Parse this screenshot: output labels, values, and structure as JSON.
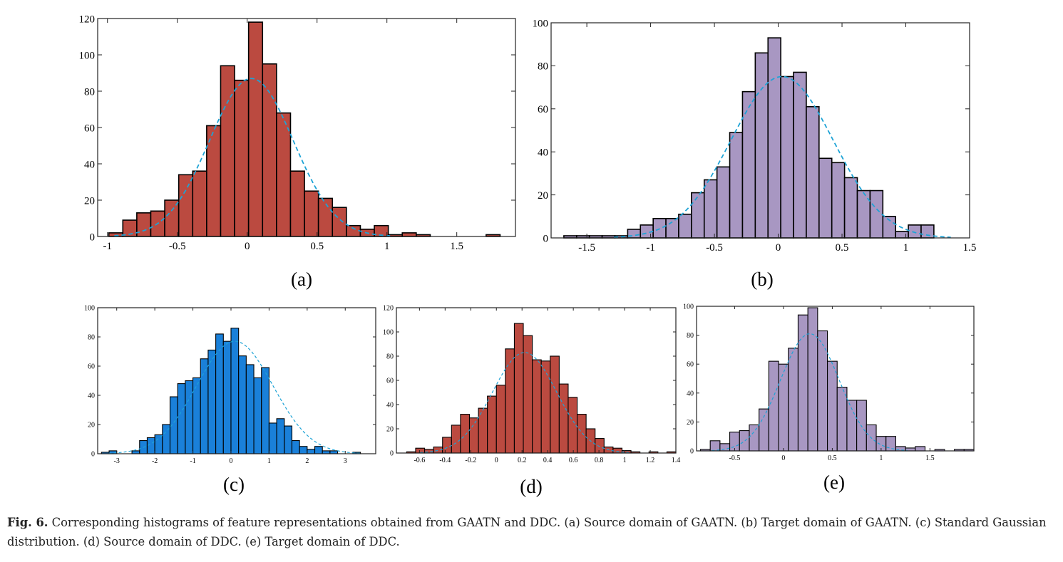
{
  "chart_data": [
    {
      "type": "histogram",
      "label": "(a)",
      "color": "#bb4a40",
      "bins": [
        -0.99,
        -0.89,
        -0.79,
        -0.69,
        -0.59,
        -0.49,
        -0.39,
        -0.29,
        -0.19,
        -0.09,
        0.01,
        0.11,
        0.21,
        0.31,
        0.41,
        0.51,
        0.61,
        0.71,
        0.81,
        0.91,
        1.01,
        1.11,
        1.21,
        1.31,
        1.41,
        1.51,
        1.61,
        1.71,
        1.81
      ],
      "values": [
        2,
        9,
        13,
        14,
        20,
        34,
        36,
        61,
        94,
        86,
        118,
        95,
        68,
        36,
        25,
        21,
        16,
        6,
        4,
        6,
        1,
        2,
        1,
        0,
        0,
        0,
        0,
        1
      ],
      "fit": {
        "style": "dashed",
        "color": "#1ea3d6",
        "mean": 0.03,
        "sd": 0.3,
        "peak": 87
      },
      "xlim": [
        -1.07,
        1.92
      ],
      "ylim": [
        0,
        120
      ],
      "xticks": [
        -1,
        -0.5,
        0,
        0.5,
        1,
        1.5
      ],
      "yticks": [
        0,
        20,
        40,
        60,
        80,
        100,
        120
      ]
    },
    {
      "type": "histogram",
      "label": "(b)",
      "color": "#a897c2",
      "bins": [
        -1.68,
        -1.58,
        -1.48,
        -1.38,
        -1.28,
        -1.18,
        -1.08,
        -0.98,
        -0.88,
        -0.78,
        -0.68,
        -0.58,
        -0.48,
        -0.38,
        -0.28,
        -0.18,
        -0.08,
        0.02,
        0.12,
        0.22,
        0.32,
        0.42,
        0.52,
        0.62,
        0.72,
        0.82,
        0.92,
        1.02,
        1.12,
        1.22
      ],
      "values": [
        1,
        1,
        1,
        1,
        1,
        4,
        6,
        9,
        9,
        11,
        21,
        27,
        33,
        49,
        68,
        86,
        93,
        75,
        77,
        61,
        37,
        35,
        28,
        22,
        22,
        10,
        3,
        6,
        6
      ],
      "fit": {
        "style": "dashed",
        "color": "#1ea3d6",
        "mean": 0.03,
        "sd": 0.4,
        "peak": 75
      },
      "xlim": [
        -1.78,
        1.5
      ],
      "ylim": [
        0,
        100
      ],
      "xticks": [
        -1.5,
        -1,
        -0.5,
        0,
        0.5,
        1,
        1.5
      ],
      "yticks": [
        0,
        20,
        40,
        60,
        80,
        100
      ]
    },
    {
      "type": "histogram",
      "label": "(c)",
      "color": "#1a80d9",
      "bins": [
        -3.4,
        -3.2,
        -3.0,
        -2.8,
        -2.6,
        -2.4,
        -2.2,
        -2.0,
        -1.8,
        -1.6,
        -1.4,
        -1.2,
        -1.0,
        -0.8,
        -0.6,
        -0.4,
        -0.2,
        0,
        0.2,
        0.4,
        0.6,
        0.8,
        1.0,
        1.2,
        1.4,
        1.6,
        1.8,
        2.0,
        2.2,
        2.4,
        2.6,
        2.8,
        3.0,
        3.2,
        3.4,
        3.6
      ],
      "values": [
        1,
        2,
        0,
        0,
        2,
        9,
        11,
        13,
        20,
        39,
        48,
        50,
        52,
        65,
        71,
        82,
        77,
        86,
        67,
        61,
        52,
        59,
        21,
        24,
        19,
        9,
        5,
        3,
        5,
        2,
        2,
        0,
        0,
        1,
        0
      ],
      "fit": {
        "style": "dashed",
        "color": "#1ea3d6",
        "mean": 0.1,
        "sd": 1.0,
        "peak": 77
      },
      "xlim": [
        -3.5,
        3.8
      ],
      "ylim": [
        0,
        100
      ],
      "xticks": [
        -3,
        -2,
        -1,
        0,
        1,
        2,
        3
      ],
      "yticks": [
        0,
        20,
        40,
        60,
        80,
        100
      ]
    },
    {
      "type": "histogram",
      "label": "(d)",
      "color": "#bb4a40",
      "bins": [
        -0.7,
        -0.63,
        -0.56,
        -0.49,
        -0.42,
        -0.35,
        -0.28,
        -0.21,
        -0.14,
        -0.07,
        0,
        0.07,
        0.14,
        0.21,
        0.28,
        0.35,
        0.42,
        0.49,
        0.56,
        0.63,
        0.7,
        0.77,
        0.84,
        0.91,
        0.98,
        1.05,
        1.12,
        1.19,
        1.26,
        1.33,
        1.4
      ],
      "values": [
        1,
        4,
        3,
        5,
        13,
        23,
        32,
        29,
        37,
        47,
        56,
        86,
        107,
        97,
        77,
        76,
        80,
        57,
        46,
        32,
        20,
        12,
        5,
        4,
        2,
        1,
        0,
        1,
        0,
        1
      ],
      "fit": {
        "style": "dashed",
        "color": "#1ea3d6",
        "mean": 0.22,
        "sd": 0.25,
        "peak": 83
      },
      "xlim": [
        -0.78,
        1.4
      ],
      "ylim": [
        0,
        120
      ],
      "xticks": [
        -0.6,
        -0.4,
        -0.2,
        0,
        0.2,
        0.4,
        0.6,
        0.8,
        1,
        1.2,
        1.4
      ],
      "yticks": [
        0,
        20,
        40,
        60,
        80,
        100,
        120
      ]
    },
    {
      "type": "histogram",
      "label": "(e)",
      "color": "#a897c2",
      "bins": [
        -0.85,
        -0.75,
        -0.65,
        -0.55,
        -0.45,
        -0.35,
        -0.25,
        -0.15,
        -0.05,
        0.05,
        0.15,
        0.25,
        0.35,
        0.45,
        0.55,
        0.65,
        0.75,
        0.85,
        0.95,
        1.05,
        1.15,
        1.25,
        1.35,
        1.45,
        1.55,
        1.65,
        1.75,
        1.85,
        1.95
      ],
      "values": [
        1,
        7,
        5,
        13,
        14,
        18,
        29,
        62,
        60,
        71,
        94,
        99,
        83,
        62,
        44,
        35,
        35,
        18,
        10,
        10,
        3,
        2,
        3,
        0,
        1,
        0,
        1,
        1
      ],
      "fit": {
        "style": "dashed",
        "color": "#1ea3d6",
        "mean": 0.27,
        "sd": 0.3,
        "peak": 81
      },
      "xlim": [
        -0.89,
        1.95
      ],
      "ylim": [
        0,
        100
      ],
      "xticks": [
        -0.5,
        0,
        0.5,
        1,
        1.5
      ],
      "yticks": [
        0,
        20,
        40,
        60,
        80,
        100
      ]
    }
  ],
  "caption": {
    "label": "Fig. 6.",
    "text": "Corresponding histograms of feature representations obtained from GAATN and DDC. (a) Source domain of GAATN. (b) Target domain of GAATN. (c) Standard Gaussian distribution. (d) Source domain of DDC. (e) Target domain of DDC."
  }
}
